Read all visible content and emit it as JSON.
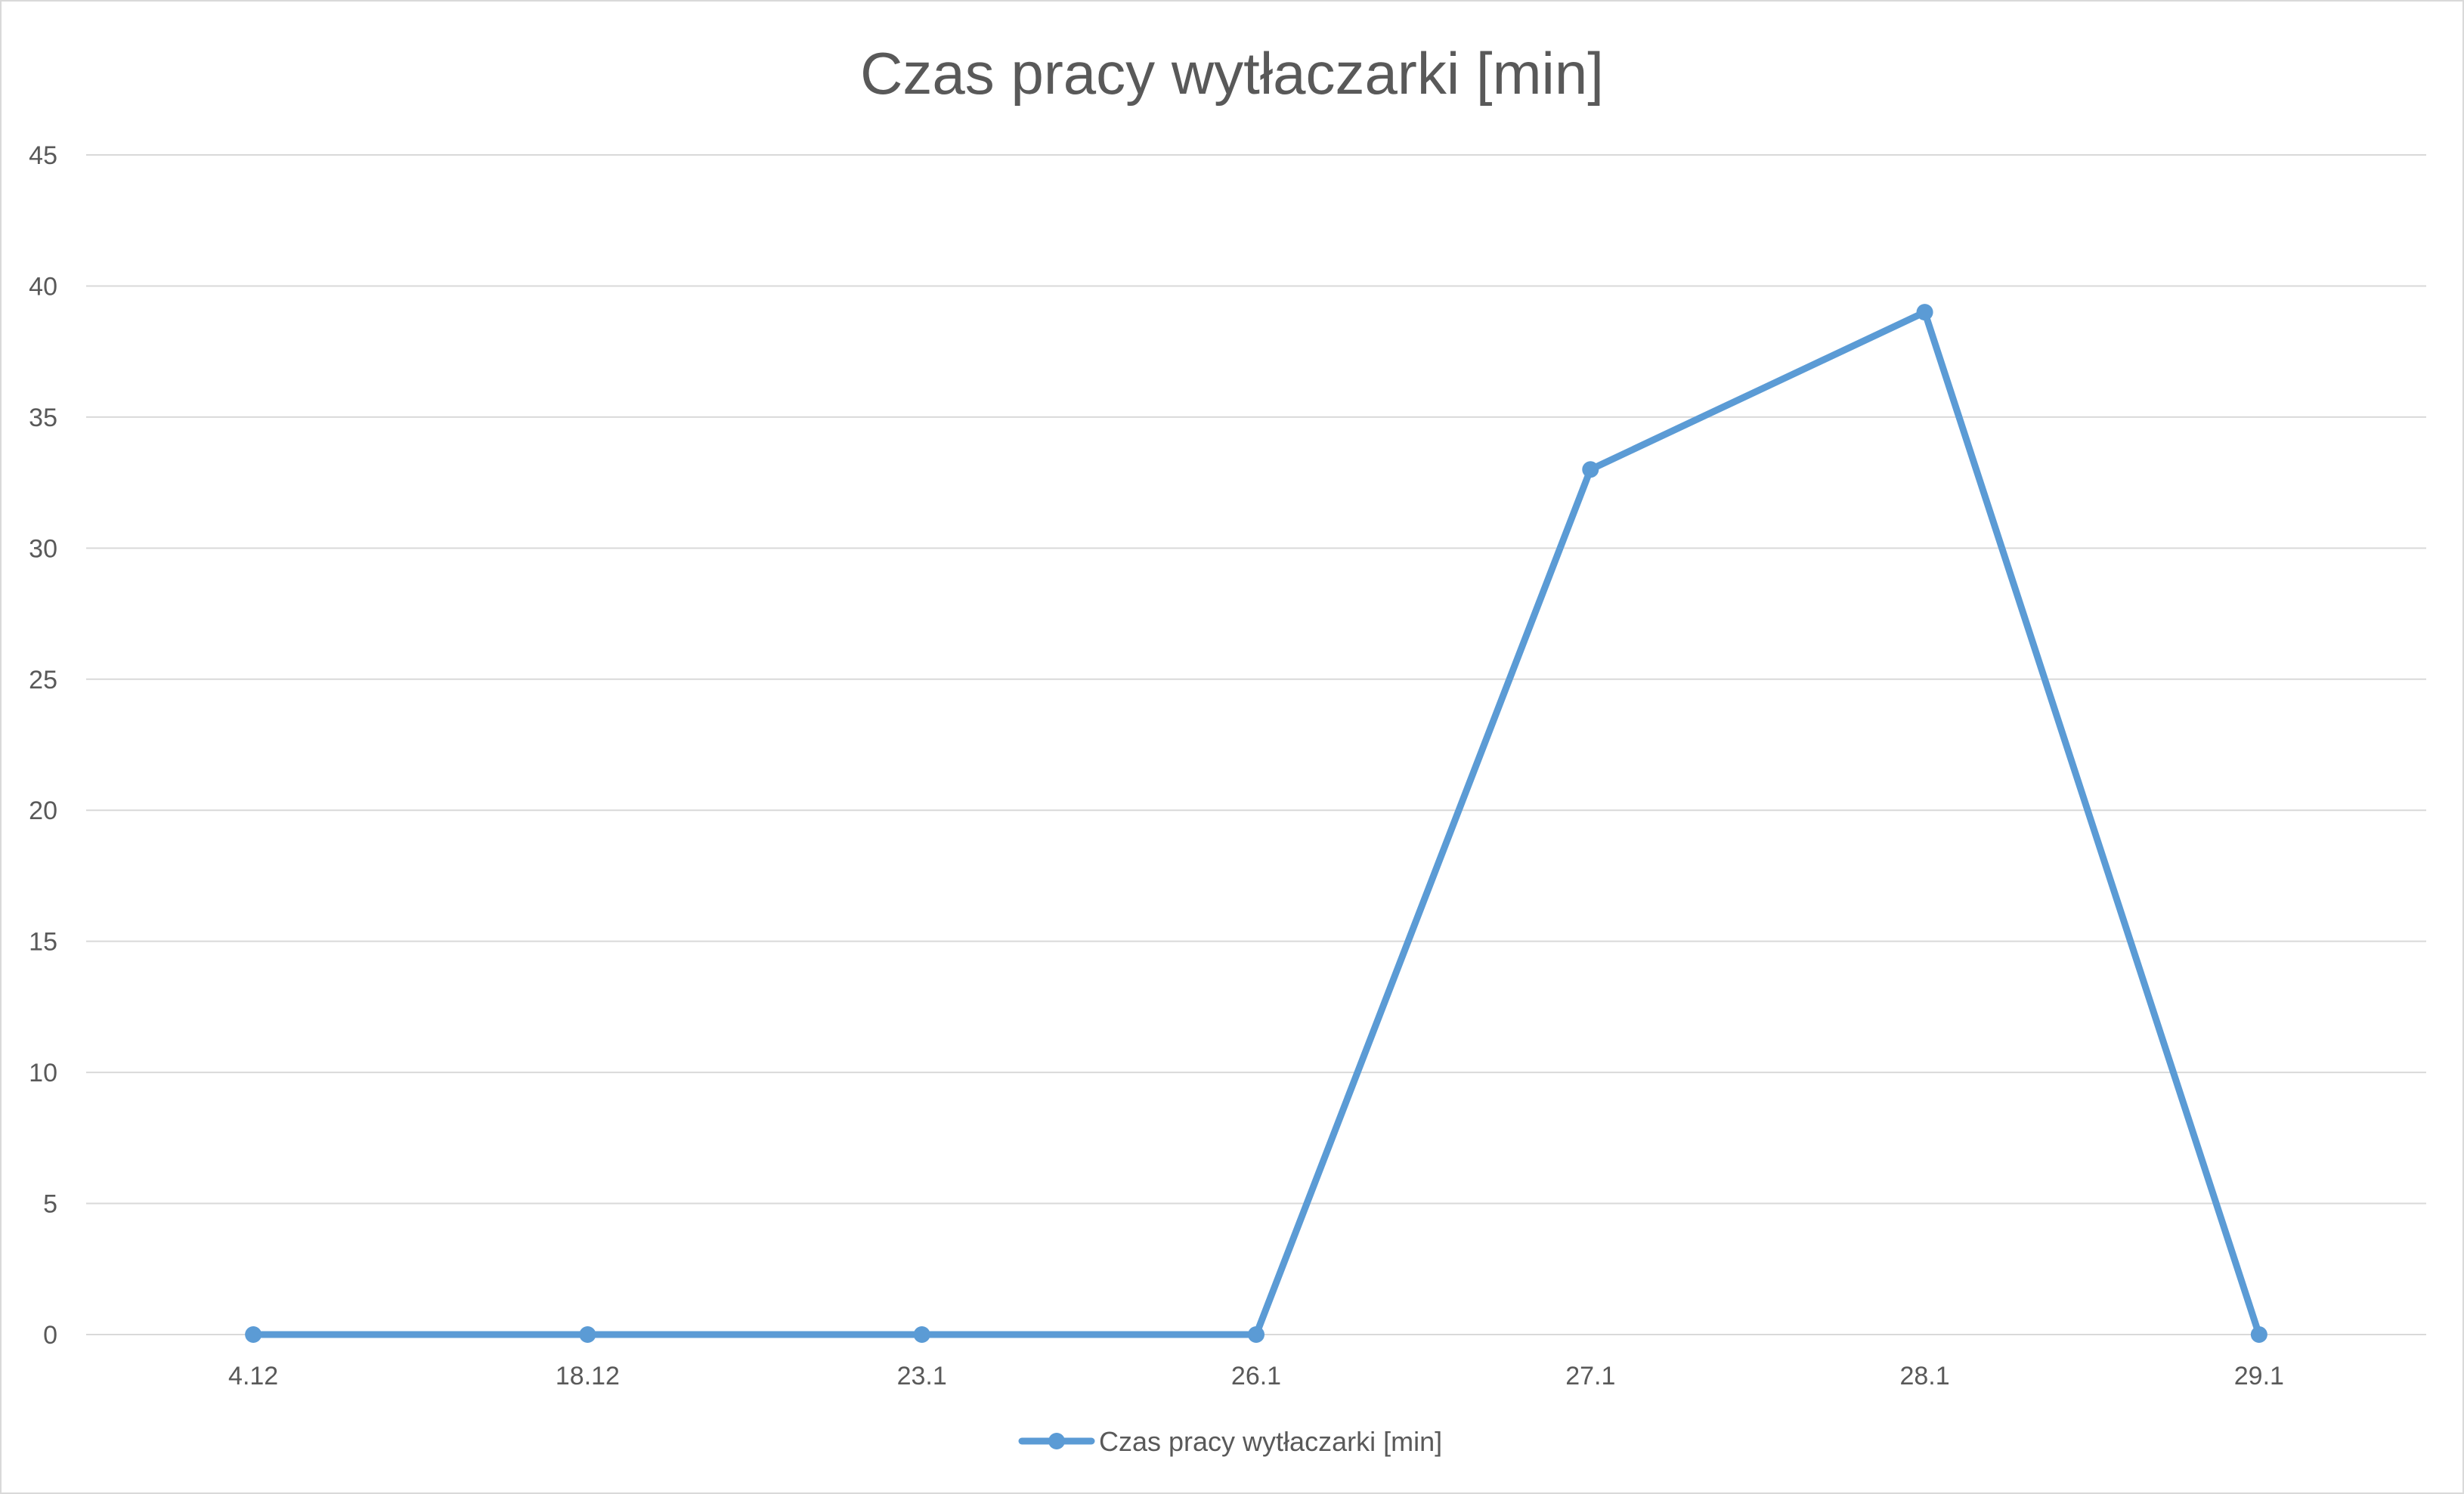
{
  "chart_data": {
    "type": "line",
    "title": "Czas pracy wytłaczarki [min]",
    "xlabel": "",
    "ylabel": "",
    "categories": [
      "4.12",
      "18.12",
      "23.1",
      "26.1",
      "27.1",
      "28.1",
      "29.1"
    ],
    "series": [
      {
        "name": "Czas pracy wytłaczarki [min]",
        "values": [
          0,
          0,
          0,
          0,
          33,
          39,
          0
        ],
        "color": "#5b9bd5"
      }
    ],
    "ylim": [
      0,
      45
    ],
    "y_ticks": [
      "0",
      "5",
      "10",
      "15",
      "20",
      "25",
      "30",
      "35",
      "40",
      "45"
    ],
    "grid": true,
    "legend_position": "bottom"
  }
}
